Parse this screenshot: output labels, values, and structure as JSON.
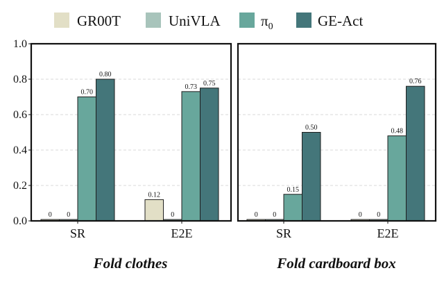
{
  "chart_data": [
    {
      "type": "bar",
      "title": "Fold clothes",
      "categories": [
        "SR",
        "E2E"
      ],
      "series": [
        {
          "name": "GR00T",
          "values": [
            0,
            0.12
          ]
        },
        {
          "name": "UniVLA",
          "values": [
            0,
            0
          ]
        },
        {
          "name": "π0",
          "values": [
            0.7,
            0.73
          ]
        },
        {
          "name": "GE-Act",
          "values": [
            0.8,
            0.75
          ]
        }
      ],
      "data_labels": [
        [
          "0",
          "0.12"
        ],
        [
          "0",
          "0"
        ],
        [
          "0.70",
          "0.73"
        ],
        [
          "0.80",
          "0.75"
        ]
      ],
      "ylim": [
        0,
        1.0
      ],
      "yticks": [
        "0.0",
        "0.2",
        "0.4",
        "0.6",
        "0.8",
        "1.0"
      ],
      "grid": true,
      "legend": "top"
    },
    {
      "type": "bar",
      "title": "Fold cardboard box",
      "categories": [
        "SR",
        "E2E"
      ],
      "series": [
        {
          "name": "GR00T",
          "values": [
            0,
            0
          ]
        },
        {
          "name": "UniVLA",
          "values": [
            0,
            0
          ]
        },
        {
          "name": "π0",
          "values": [
            0.15,
            0.48
          ]
        },
        {
          "name": "GE-Act",
          "values": [
            0.5,
            0.76
          ]
        }
      ],
      "data_labels": [
        [
          "0",
          "0"
        ],
        [
          "0",
          "0"
        ],
        [
          "0.15",
          "0.48"
        ],
        [
          "0.50",
          "0.76"
        ]
      ],
      "ylim": [
        0,
        1.0
      ],
      "grid": true,
      "legend": "top"
    }
  ],
  "legend": {
    "items": [
      {
        "base": "GR00T",
        "sub": "",
        "color": "#e2dfc6"
      },
      {
        "base": "UniVLA",
        "sub": "",
        "color": "#a8c4bb"
      },
      {
        "base": "π",
        "sub": "0",
        "color": "#68a79c"
      },
      {
        "base": "GE-Act",
        "sub": "",
        "color": "#44767a"
      }
    ]
  }
}
